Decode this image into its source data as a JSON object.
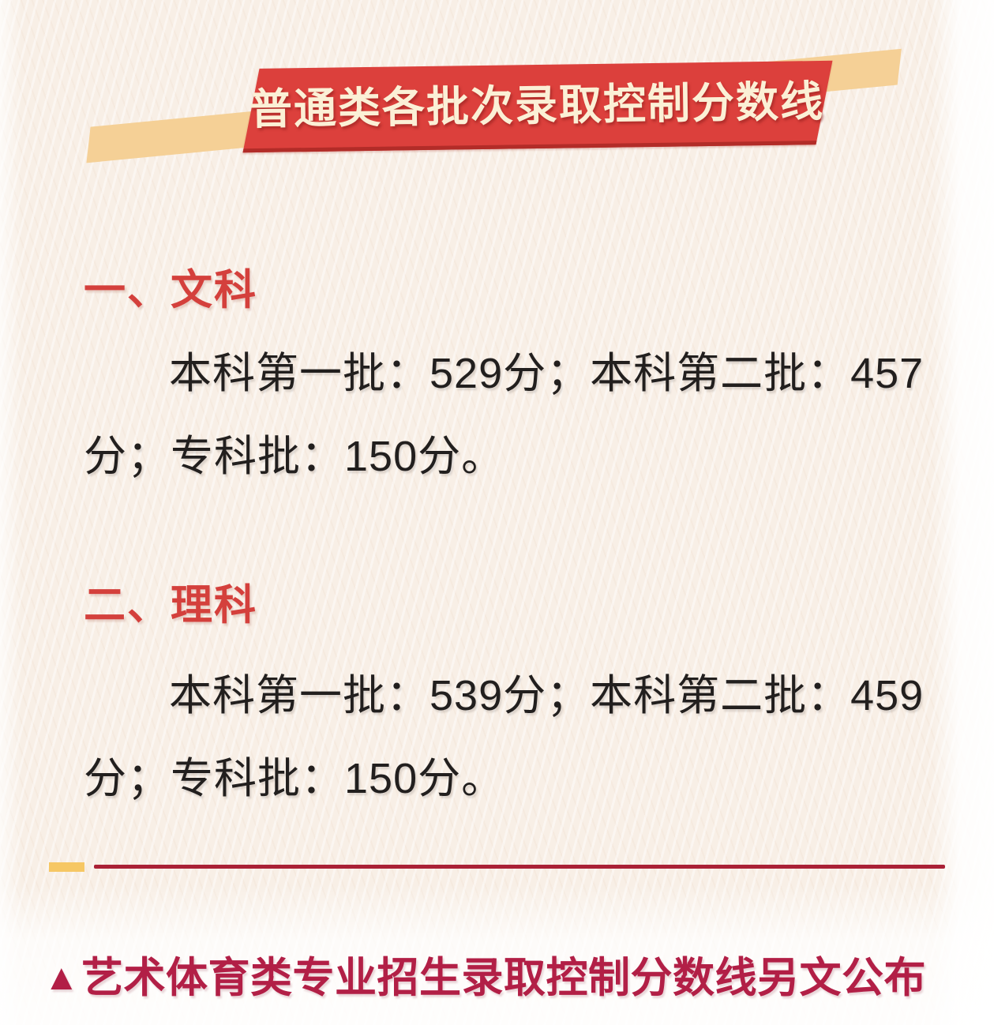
{
  "page": {
    "background_color": "#f8efe6"
  },
  "banner": {
    "title": "普通类各批次录取控制分数线",
    "plate_color": "#dc403c",
    "plate_edge_color": "#b22c28",
    "ribbon_color": "#f5d096",
    "title_color": "#fbf0d6"
  },
  "sections": [
    {
      "heading": "一、文科",
      "line1": "本科第一批：529分；本科第二批：457",
      "line2": "分；专科批：150分。"
    },
    {
      "heading": "二、理科",
      "line1": "本科第一批：539分；本科第二批：459",
      "line2": "分；专科批：150分。"
    }
  ],
  "divider": {
    "square_color": "#f6c764",
    "line_color": "#aa2136"
  },
  "footer": {
    "marker": "▲",
    "text": "艺术体育类专业招生录取控制分数线另文公布",
    "color": "#b21f46"
  },
  "accent": {
    "heading_color": "#d4403c",
    "body_text_color": "#221f1e"
  }
}
